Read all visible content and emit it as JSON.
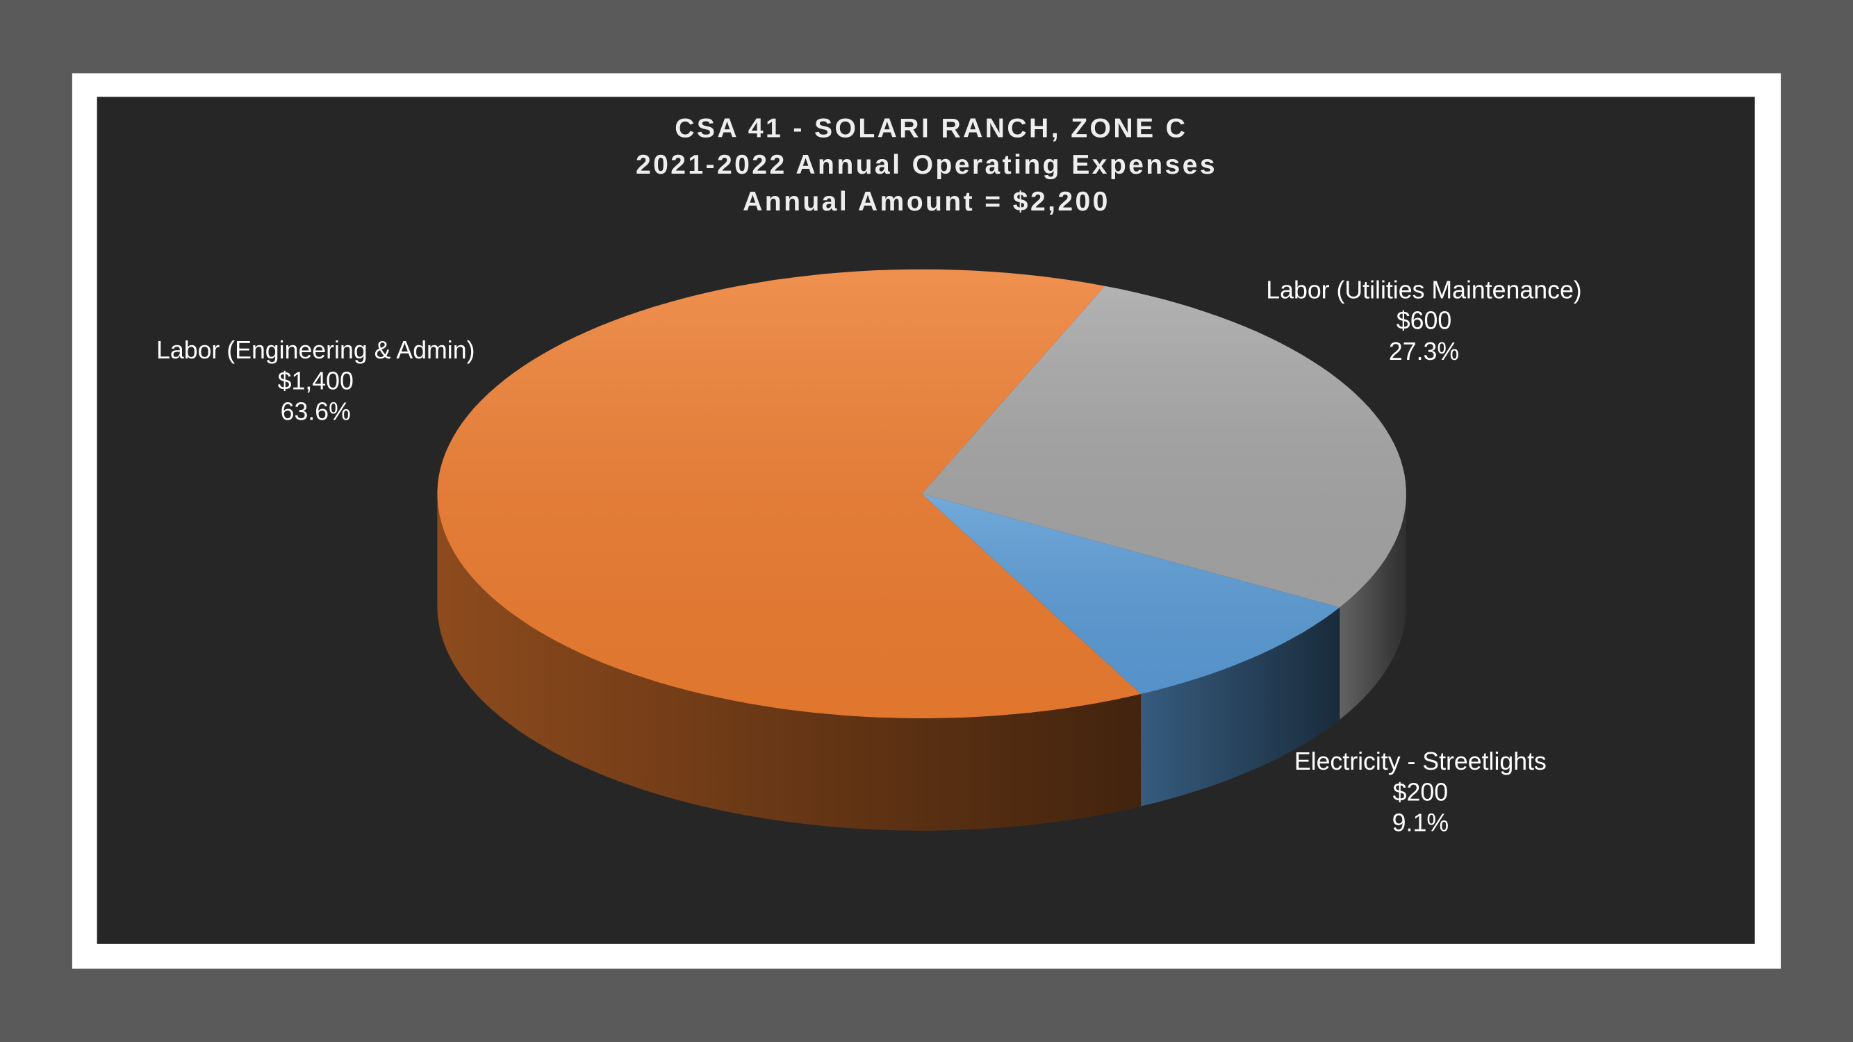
{
  "chart_data": {
    "type": "pie3d",
    "title": [
      "CSA 41 - SOLARI RANCH, ZONE C",
      "2021-2022 Annual Operating Expenses",
      "Annual Amount = $2,200"
    ],
    "categories": [
      "Labor (Engineering & Admin)",
      "Labor (Utilities Maintenance)",
      "Electricity - Streetlights"
    ],
    "values": [
      1400,
      600,
      200
    ],
    "value_labels": [
      "$1,400",
      "$600",
      "$200"
    ],
    "percent_labels": [
      "63.6%",
      "27.3%",
      "9.1%"
    ],
    "colors": [
      "#ed7d31",
      "#a5a5a5",
      "#5b9bd5"
    ]
  }
}
